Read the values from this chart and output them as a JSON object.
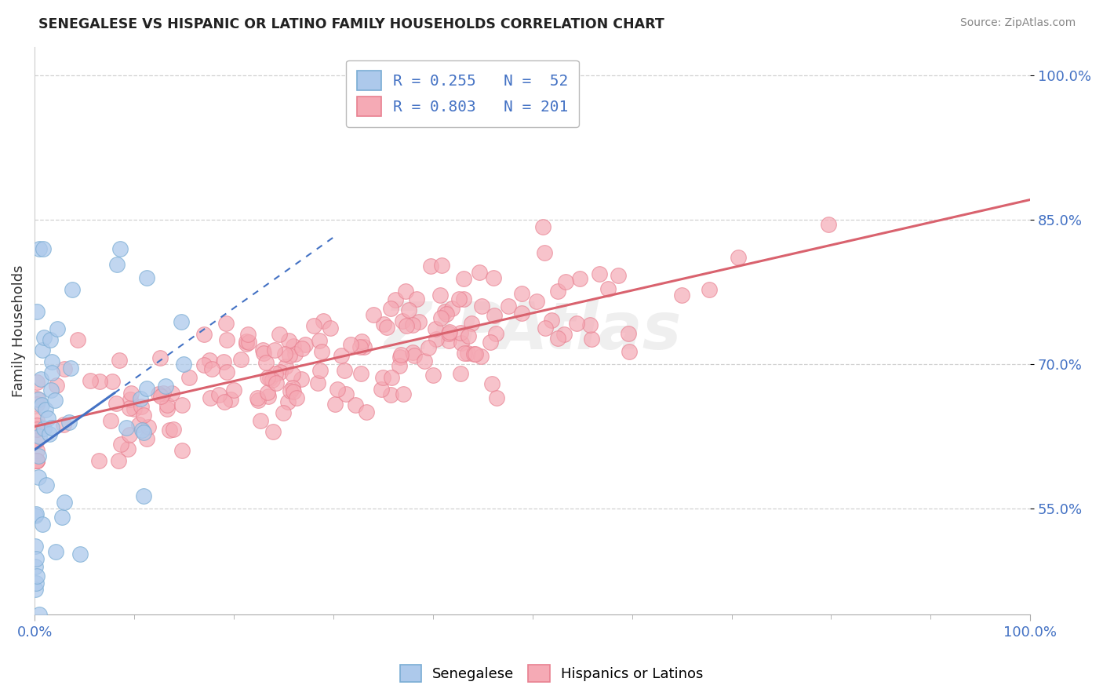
{
  "title": "SENEGALESE VS HISPANIC OR LATINO FAMILY HOUSEHOLDS CORRELATION CHART",
  "source": "Source: ZipAtlas.com",
  "ylabel": "Family Households",
  "x_min": 0.0,
  "x_max": 100.0,
  "y_min": 44.0,
  "y_max": 103.0,
  "y_ticks": [
    55.0,
    70.0,
    85.0,
    100.0
  ],
  "legend_blue_label": "Senegalese",
  "legend_pink_label": "Hispanics or Latinos",
  "R_blue": 0.255,
  "N_blue": 52,
  "R_pink": 0.803,
  "N_pink": 201,
  "blue_color": "#adc9eb",
  "pink_color": "#f5aab5",
  "blue_line_color": "#4472c4",
  "pink_line_color": "#d9626e",
  "title_color": "#222222",
  "source_color": "#888888",
  "axis_label_color": "#333333",
  "tick_label_color": "#4472c4",
  "grid_color": "#cccccc",
  "background_color": "#ffffff",
  "watermark_text": "ZIPAtlas",
  "watermark_color": "#e0e0e0"
}
